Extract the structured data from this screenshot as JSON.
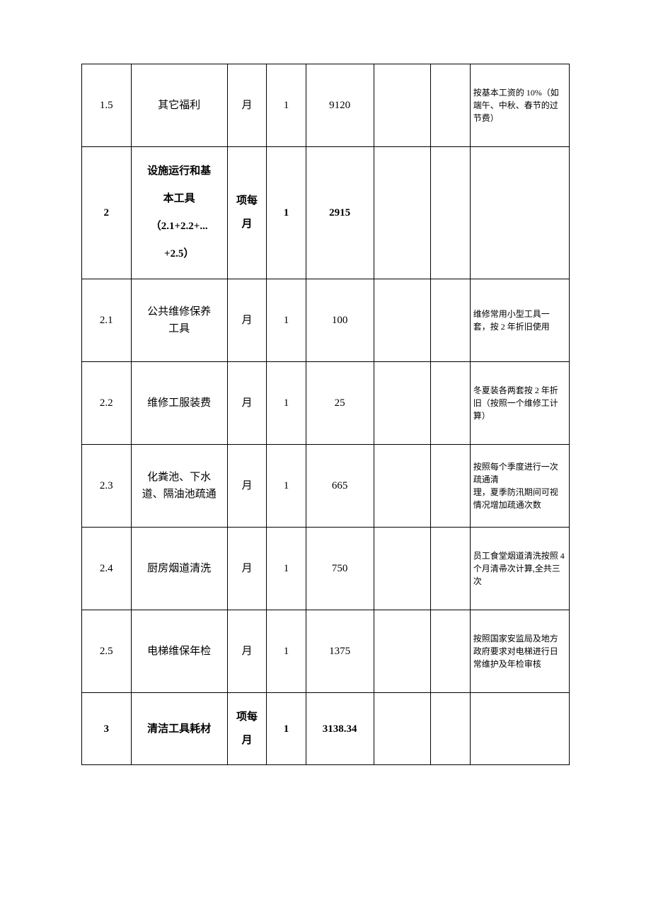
{
  "rows": [
    {
      "idx": "1.5",
      "name": "其它福利",
      "unit": "月",
      "qty": "1",
      "price": "9120",
      "note": "按基本工资的 10%（如端午、中秋、春节的过\n节费）",
      "bold": false,
      "nameClass": ""
    },
    {
      "idx": "2",
      "name": "设施运行和基\n本工具\n（2.1+2.2+...\n+2.5）",
      "unit": "项每\n月",
      "qty": "1",
      "price": "2915",
      "note": "",
      "bold": true,
      "nameClass": "multi"
    },
    {
      "idx": "2.1",
      "name": "公共维修保养\n工具",
      "unit": "月",
      "qty": "1",
      "price": "100",
      "note": "维修常用小型工具一套，按 2 年折旧使用",
      "bold": false,
      "nameClass": ""
    },
    {
      "idx": "2.2",
      "name": "维修工服装费",
      "unit": "月",
      "qty": "1",
      "price": "25",
      "note": "冬夏装各两套按 2 年折旧（按照一个维修工计算）",
      "bold": false,
      "nameClass": ""
    },
    {
      "idx": "2.3",
      "name": "化粪池、下水\n道、隔油池疏通",
      "unit": "月",
      "qty": "1",
      "price": "665",
      "note": "按照每个季度进行一次疏通清\n理，夏季防汛期间可视情况增加疏通次数",
      "bold": false,
      "nameClass": ""
    },
    {
      "idx": "2.4",
      "name": "厨房烟道清洗",
      "unit": "月",
      "qty": "1",
      "price": "750",
      "note": "员工食堂烟道清洗按照 4 个月清帚次计算,全共三次",
      "bold": false,
      "nameClass": ""
    },
    {
      "idx": "2.5",
      "name": "电梯维保年检",
      "unit": "月",
      "qty": "1",
      "price": "1375",
      "note": "按照国家安监局及地方政府要求对电梯进行日常维护及年检审核",
      "bold": false,
      "nameClass": ""
    },
    {
      "idx": "3",
      "name": "清洁工具耗材",
      "unit": "项每\n月",
      "qty": "1",
      "price": "3138.34",
      "note": "",
      "bold": true,
      "nameClass": ""
    }
  ],
  "rowHeights": [
    "tall",
    "big",
    "tall",
    "tall",
    "tall",
    "tall",
    "tall",
    "med"
  ]
}
